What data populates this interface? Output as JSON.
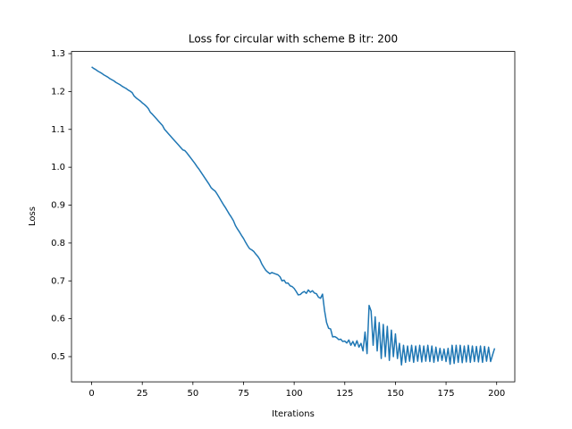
{
  "chart_data": {
    "type": "line",
    "title": "Loss for circular with scheme B itr: 200",
    "x_label": "Iterations",
    "y_label": "Loss",
    "color": "#1f77b4",
    "grid": false,
    "x": [
      0,
      1,
      2,
      3,
      4,
      5,
      6,
      7,
      8,
      9,
      10,
      11,
      12,
      13,
      14,
      15,
      16,
      17,
      18,
      19,
      20,
      21,
      22,
      23,
      24,
      25,
      26,
      27,
      28,
      29,
      30,
      31,
      32,
      33,
      34,
      35,
      36,
      37,
      38,
      39,
      40,
      41,
      42,
      43,
      44,
      45,
      46,
      47,
      48,
      49,
      50,
      51,
      52,
      53,
      54,
      55,
      56,
      57,
      58,
      59,
      60,
      61,
      62,
      63,
      64,
      65,
      66,
      67,
      68,
      69,
      70,
      71,
      72,
      73,
      74,
      75,
      76,
      77,
      78,
      79,
      80,
      81,
      82,
      83,
      84,
      85,
      86,
      87,
      88,
      89,
      90,
      91,
      92,
      93,
      94,
      95,
      96,
      97,
      98,
      99,
      100,
      101,
      102,
      103,
      104,
      105,
      106,
      107,
      108,
      109,
      110,
      111,
      112,
      113,
      114,
      115,
      116,
      117,
      118,
      119,
      120,
      121,
      122,
      123,
      124,
      125,
      126,
      127,
      128,
      129,
      130,
      131,
      132,
      133,
      134,
      135,
      136,
      137,
      138,
      139,
      140,
      141,
      142,
      143,
      144,
      145,
      146,
      147,
      148,
      149,
      150,
      151,
      152,
      153,
      154,
      155,
      156,
      157,
      158,
      159,
      160,
      161,
      162,
      163,
      164,
      165,
      166,
      167,
      168,
      169,
      170,
      171,
      172,
      173,
      174,
      175,
      176,
      177,
      178,
      179,
      180,
      181,
      182,
      183,
      184,
      185,
      186,
      187,
      188,
      189,
      190,
      191,
      192,
      193,
      194,
      195,
      196,
      197,
      198,
      199
    ],
    "values": [
      1.265,
      1.261,
      1.258,
      1.254,
      1.251,
      1.248,
      1.244,
      1.241,
      1.238,
      1.234,
      1.231,
      1.228,
      1.224,
      1.221,
      1.218,
      1.214,
      1.211,
      1.208,
      1.204,
      1.201,
      1.197,
      1.188,
      1.183,
      1.179,
      1.175,
      1.17,
      1.166,
      1.161,
      1.155,
      1.145,
      1.14,
      1.134,
      1.128,
      1.122,
      1.116,
      1.11,
      1.1,
      1.094,
      1.088,
      1.082,
      1.076,
      1.07,
      1.064,
      1.058,
      1.052,
      1.046,
      1.044,
      1.038,
      1.031,
      1.024,
      1.017,
      1.01,
      1.002,
      0.995,
      0.987,
      0.979,
      0.971,
      0.963,
      0.955,
      0.946,
      0.941,
      0.937,
      0.929,
      0.92,
      0.911,
      0.902,
      0.894,
      0.885,
      0.876,
      0.868,
      0.859,
      0.846,
      0.837,
      0.829,
      0.82,
      0.812,
      0.802,
      0.793,
      0.785,
      0.782,
      0.778,
      0.771,
      0.765,
      0.757,
      0.745,
      0.736,
      0.728,
      0.723,
      0.719,
      0.722,
      0.72,
      0.718,
      0.716,
      0.711,
      0.7,
      0.702,
      0.694,
      0.694,
      0.687,
      0.685,
      0.68,
      0.672,
      0.663,
      0.664,
      0.669,
      0.672,
      0.667,
      0.676,
      0.67,
      0.674,
      0.668,
      0.666,
      0.657,
      0.654,
      0.665,
      0.622,
      0.59,
      0.575,
      0.573,
      0.552,
      0.553,
      0.55,
      0.545,
      0.546,
      0.54,
      0.541,
      0.536,
      0.544,
      0.53,
      0.54,
      0.528,
      0.542,
      0.525,
      0.535,
      0.515,
      0.565,
      0.508,
      0.635,
      0.62,
      0.53,
      0.605,
      0.515,
      0.59,
      0.495,
      0.585,
      0.5,
      0.58,
      0.49,
      0.57,
      0.5,
      0.56,
      0.495,
      0.535,
      0.478,
      0.53,
      0.485,
      0.528,
      0.488,
      0.53,
      0.485,
      0.528,
      0.488,
      0.53,
      0.486,
      0.528,
      0.488,
      0.53,
      0.487,
      0.528,
      0.485,
      0.525,
      0.488,
      0.522,
      0.49,
      0.52,
      0.487,
      0.522,
      0.48,
      0.53,
      0.482,
      0.53,
      0.485,
      0.53,
      0.484,
      0.528,
      0.486,
      0.53,
      0.485,
      0.528,
      0.487,
      0.527,
      0.486,
      0.528,
      0.485,
      0.527,
      0.488,
      0.525,
      0.487,
      0.505,
      0.522
    ],
    "xlim": [
      -9.95,
      208.95
    ],
    "xticks": [
      0,
      25,
      50,
      75,
      100,
      125,
      150,
      175,
      200
    ],
    "ylim": [
      0.4335,
      1.3057
    ],
    "yticks": [
      0.5,
      0.6,
      0.7,
      0.8,
      0.9,
      {
        "value": 1,
        "label": "1.0"
      },
      1.1,
      1.2,
      1.3
    ]
  }
}
